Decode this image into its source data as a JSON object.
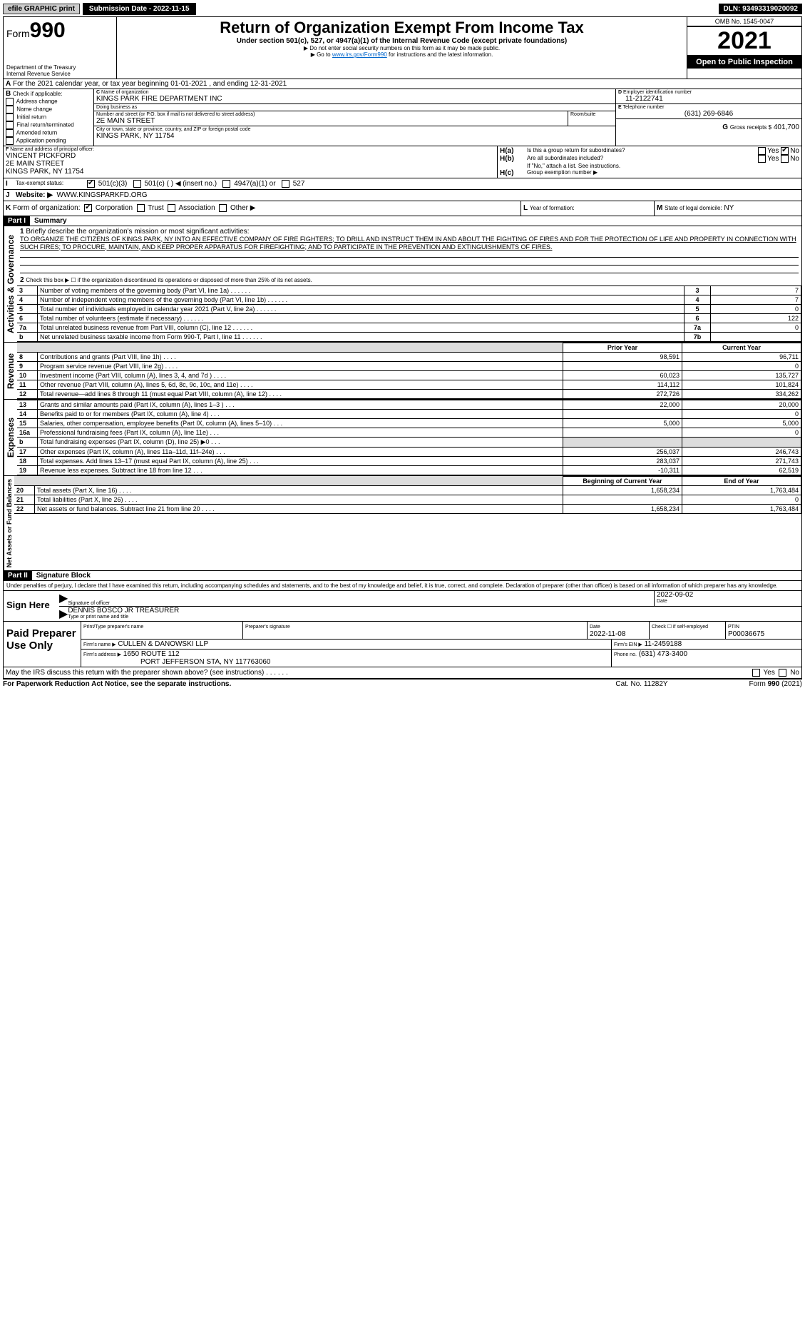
{
  "topbar": {
    "efile": "efile GRAPHIC print",
    "submission": "Submission Date - 2022-11-15",
    "dln": "DLN: 93493319020092"
  },
  "header": {
    "form_prefix": "Form",
    "form_number": "990",
    "title": "Return of Organization Exempt From Income Tax",
    "subtitle": "Under section 501(c), 527, or 4947(a)(1) of the Internal Revenue Code (except private foundations)",
    "note1": "▶ Do not enter social security numbers on this form as it may be made public.",
    "note2_pre": "▶ Go to ",
    "note2_link": "www.irs.gov/Form990",
    "note2_post": " for instructions and the latest information.",
    "dept": "Department of the Treasury",
    "irs": "Internal Revenue Service",
    "omb": "OMB No. 1545-0047",
    "year": "2021",
    "open": "Open to Public Inspection"
  },
  "A": {
    "text": "For the 2021 calendar year, or tax year beginning 01-01-2021    , and ending 12-31-2021"
  },
  "B": {
    "label": "Check if applicable:",
    "items": [
      "Address change",
      "Name change",
      "Initial return",
      "Final return/terminated",
      "Amended return",
      "Application pending"
    ]
  },
  "C": {
    "name_label": "Name of organization",
    "name": "KINGS PARK FIRE DEPARTMENT INC",
    "dba_label": "Doing business as",
    "dba": "",
    "street_label": "Number and street (or P.O. box if mail is not delivered to street address)",
    "street": "2E MAIN STREET",
    "room_label": "Room/suite",
    "city_label": "City or town, state or province, country, and ZIP or foreign postal code",
    "city": "KINGS PARK, NY  11754"
  },
  "D": {
    "label": "Employer identification number",
    "value": "11-2122741"
  },
  "E": {
    "label": "Telephone number",
    "value": "(631) 269-6846"
  },
  "G": {
    "label": "Gross receipts $",
    "value": "401,700"
  },
  "F": {
    "label": "Name and address of principal officer:",
    "name": "VINCENT PICKFORD",
    "street": "2E MAIN STREET",
    "city": "KINGS PARK, NY  11754"
  },
  "H": {
    "a": "Is this a group return for subordinates?",
    "a_yes": "Yes",
    "a_no": "No",
    "b": "Are all subordinates included?",
    "c_pre": "If \"No,\" attach a list. See instructions.",
    "c": "Group exemption number ▶"
  },
  "I": {
    "label": "Tax-exempt status:",
    "opts": [
      "501(c)(3)",
      "501(c) (  ) ◀ (insert no.)",
      "4947(a)(1) or",
      "527"
    ]
  },
  "J": {
    "label": "Website: ▶",
    "value": "WWW.KINGSPARKFD.ORG"
  },
  "K": {
    "label": "Form of organization:",
    "opts": [
      "Corporation",
      "Trust",
      "Association",
      "Other ▶"
    ]
  },
  "L": {
    "label": "Year of formation:",
    "value": ""
  },
  "M": {
    "label": "State of legal domicile:",
    "value": "NY"
  },
  "partI": {
    "title": "Summary",
    "q1": "Briefly describe the organization's mission or most significant activities:",
    "mission": "TO ORGANIZE THE CITIZENS OF KINGS PARK, NY INTO AN EFFECTIVE COMPANY OF FIRE FIGHTERS; TO DRILL AND INSTRUCT THEM IN AND ABOUT THE FIGHTING OF FIRES AND FOR THE PROTECTION OF LIFE AND PROPERTY IN CONNECTION WITH SUCH FIRES; TO PROCURE, MAINTAIN, AND KEEP PROPER APPARATUS FOR FIREFIGHTING; AND TO PARTICIPATE IN THE PREVENTION AND EXTINGUISHMENTS OF FIRES.",
    "q2": "Check this box ▶ ☐  if the organization discontinued its operations or disposed of more than 25% of its net assets.",
    "gov_rows": [
      {
        "n": "3",
        "t": "Number of voting members of the governing body (Part VI, line 1a)",
        "box": "3",
        "v": "7"
      },
      {
        "n": "4",
        "t": "Number of independent voting members of the governing body (Part VI, line 1b)",
        "box": "4",
        "v": "7"
      },
      {
        "n": "5",
        "t": "Total number of individuals employed in calendar year 2021 (Part V, line 2a)",
        "box": "5",
        "v": "0"
      },
      {
        "n": "6",
        "t": "Total number of volunteers (estimate if necessary)",
        "box": "6",
        "v": "122"
      },
      {
        "n": "7a",
        "t": "Total unrelated business revenue from Part VIII, column (C), line 12",
        "box": "7a",
        "v": "0"
      },
      {
        "n": "b",
        "t": "Net unrelated business taxable income from Form 990-T, Part I, line 11",
        "box": "7b",
        "v": ""
      }
    ],
    "col_prior": "Prior Year",
    "col_current": "Current Year",
    "rev_rows": [
      {
        "n": "8",
        "t": "Contributions and grants (Part VIII, line 1h)",
        "p": "98,591",
        "c": "96,711"
      },
      {
        "n": "9",
        "t": "Program service revenue (Part VIII, line 2g)",
        "p": "",
        "c": "0"
      },
      {
        "n": "10",
        "t": "Investment income (Part VIII, column (A), lines 3, 4, and 7d )",
        "p": "60,023",
        "c": "135,727"
      },
      {
        "n": "11",
        "t": "Other revenue (Part VIII, column (A), lines 5, 6d, 8c, 9c, 10c, and 11e)",
        "p": "114,112",
        "c": "101,824"
      },
      {
        "n": "12",
        "t": "Total revenue—add lines 8 through 11 (must equal Part VIII, column (A), line 12)",
        "p": "272,726",
        "c": "334,262"
      }
    ],
    "exp_rows": [
      {
        "n": "13",
        "t": "Grants and similar amounts paid (Part IX, column (A), lines 1–3 )",
        "p": "22,000",
        "c": "20,000"
      },
      {
        "n": "14",
        "t": "Benefits paid to or for members (Part IX, column (A), line 4)",
        "p": "",
        "c": "0"
      },
      {
        "n": "15",
        "t": "Salaries, other compensation, employee benefits (Part IX, column (A), lines 5–10)",
        "p": "5,000",
        "c": "5,000"
      },
      {
        "n": "16a",
        "t": "Professional fundraising fees (Part IX, column (A), line 11e)",
        "p": "",
        "c": "0"
      },
      {
        "n": "b",
        "t": "Total fundraising expenses (Part IX, column (D), line 25) ▶0",
        "p": "GRAY",
        "c": "GRAY"
      },
      {
        "n": "17",
        "t": "Other expenses (Part IX, column (A), lines 11a–11d, 11f–24e)",
        "p": "256,037",
        "c": "246,743"
      },
      {
        "n": "18",
        "t": "Total expenses. Add lines 13–17 (must equal Part IX, column (A), line 25)",
        "p": "283,037",
        "c": "271,743"
      },
      {
        "n": "19",
        "t": "Revenue less expenses. Subtract line 18 from line 12",
        "p": "-10,311",
        "c": "62,519"
      }
    ],
    "col_begin": "Beginning of Current Year",
    "col_end": "End of Year",
    "net_rows": [
      {
        "n": "20",
        "t": "Total assets (Part X, line 16)",
        "p": "1,658,234",
        "c": "1,763,484"
      },
      {
        "n": "21",
        "t": "Total liabilities (Part X, line 26)",
        "p": "",
        "c": "0"
      },
      {
        "n": "22",
        "t": "Net assets or fund balances. Subtract line 21 from line 20",
        "p": "1,658,234",
        "c": "1,763,484"
      }
    ],
    "vlabels": {
      "gov": "Activities & Governance",
      "rev": "Revenue",
      "exp": "Expenses",
      "net": "Net Assets or Fund Balances"
    }
  },
  "partII": {
    "title": "Signature Block",
    "decl": "Under penalties of perjury, I declare that I have examined this return, including accompanying schedules and statements, and to the best of my knowledge and belief, it is true, correct, and complete. Declaration of preparer (other than officer) is based on all information of which preparer has any knowledge.",
    "sign_here": "Sign Here",
    "sig_officer": "Signature of officer",
    "date": "Date",
    "sig_date": "2022-09-02",
    "name_title": "DENNIS BOSCO JR TREASURER",
    "type_name": "Type or print name and title",
    "paid": "Paid Preparer Use Only",
    "prep_name_lbl": "Print/Type preparer's name",
    "prep_sig_lbl": "Preparer's signature",
    "prep_date_lbl": "Date",
    "prep_date": "2022-11-08",
    "check_lbl": "Check ☐ if self-employed",
    "ptin_lbl": "PTIN",
    "ptin": "P00036675",
    "firm_name_lbl": "Firm's name    ▶",
    "firm_name": "CULLEN & DANOWSKI LLP",
    "firm_ein_lbl": "Firm's EIN ▶",
    "firm_ein": "11-2459188",
    "firm_addr_lbl": "Firm's address ▶",
    "firm_addr1": "1650 ROUTE 112",
    "firm_addr2": "PORT JEFFERSON STA, NY  117763060",
    "phone_lbl": "Phone no.",
    "phone": "(631) 473-3400",
    "discuss": "May the IRS discuss this return with the preparer shown above? (see instructions)",
    "yes": "Yes",
    "no": "No"
  },
  "footer": {
    "left": "For Paperwork Reduction Act Notice, see the separate instructions.",
    "mid": "Cat. No. 11282Y",
    "right": "Form 990 (2021)"
  }
}
